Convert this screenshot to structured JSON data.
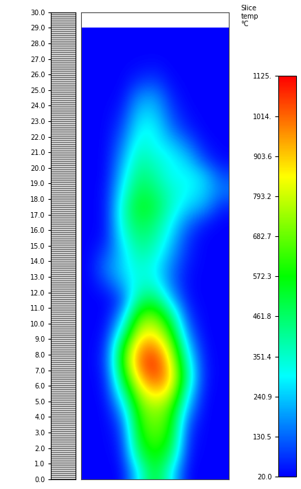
{
  "chart_data": {
    "type": "heatmap",
    "title": "Slice\ntemp\n°C",
    "tick_labels": "y",
    "xlim": [
      -4.5,
      4.5
    ],
    "xticks": [],
    "ylim": [
      0,
      30
    ],
    "yticks": [
      {
        "value": 0,
        "label": "0.0"
      },
      {
        "value": 1,
        "label": "1.0"
      },
      {
        "value": 2,
        "label": "2.0"
      },
      {
        "value": 3,
        "label": "3.0"
      },
      {
        "value": 4,
        "label": "4.0"
      },
      {
        "value": 5,
        "label": "5.0"
      },
      {
        "value": 6,
        "label": "6.0"
      },
      {
        "value": 7,
        "label": "7.0"
      },
      {
        "value": 8,
        "label": "8.0"
      },
      {
        "value": 9,
        "label": "9.0"
      },
      {
        "value": 10,
        "label": "10.0"
      },
      {
        "value": 11,
        "label": "11.0"
      },
      {
        "value": 12,
        "label": "12.0"
      },
      {
        "value": 13,
        "label": "13.0"
      },
      {
        "value": 14,
        "label": "14.0"
      },
      {
        "value": 15,
        "label": "15.0"
      },
      {
        "value": 16,
        "label": "16.0"
      },
      {
        "value": 17,
        "label": "17.0"
      },
      {
        "value": 18,
        "label": "18.0"
      },
      {
        "value": 19,
        "label": "19.0"
      },
      {
        "value": 20,
        "label": "20.0"
      },
      {
        "value": 21,
        "label": "21.0"
      },
      {
        "value": 22,
        "label": "22.0"
      },
      {
        "value": 23,
        "label": "23.0"
      },
      {
        "value": 24,
        "label": "24.0"
      },
      {
        "value": 25,
        "label": "25.0"
      },
      {
        "value": 26,
        "label": "26.0"
      },
      {
        "value": 27,
        "label": "27.0"
      },
      {
        "value": 28,
        "label": "28.0"
      },
      {
        "value": 29,
        "label": "29.0"
      },
      {
        "value": 30,
        "label": "30.0"
      }
    ],
    "x": [
      -4,
      -3,
      -2,
      -1,
      0,
      1,
      2,
      3,
      4
    ],
    "y": [
      0.5,
      1.5,
      2.5,
      3.5,
      4.5,
      5.5,
      6.5,
      7.5,
      8.5,
      9.5,
      10.5,
      11.5,
      12.5,
      13.5,
      14.5,
      15.5,
      16.5,
      17.5,
      18.5,
      19.5,
      20.5,
      21.5,
      22.5,
      23.5,
      24.5,
      25.5,
      26.5,
      27.5,
      28.5
    ],
    "cells": [
      [
        20,
        20,
        20,
        300,
        550,
        300,
        20,
        20,
        20
      ],
      [
        20,
        20,
        40,
        450,
        600,
        450,
        40,
        20,
        20
      ],
      [
        20,
        20,
        60,
        550,
        650,
        550,
        60,
        20,
        20
      ],
      [
        20,
        20,
        100,
        600,
        700,
        600,
        100,
        20,
        20
      ],
      [
        20,
        20,
        200,
        650,
        750,
        650,
        200,
        20,
        20
      ],
      [
        20,
        30,
        350,
        750,
        900,
        800,
        300,
        30,
        20
      ],
      [
        20,
        40,
        500,
        900,
        1050,
        900,
        400,
        40,
        20
      ],
      [
        20,
        60,
        600,
        1000,
        1100,
        850,
        350,
        40,
        20
      ],
      [
        20,
        50,
        550,
        950,
        1000,
        750,
        250,
        30,
        20
      ],
      [
        20,
        30,
        350,
        800,
        850,
        600,
        150,
        20,
        20
      ],
      [
        20,
        20,
        200,
        650,
        700,
        450,
        80,
        20,
        20
      ],
      [
        20,
        20,
        100,
        450,
        500,
        250,
        40,
        20,
        20
      ],
      [
        20,
        80,
        200,
        350,
        350,
        150,
        30,
        20,
        20
      ],
      [
        20,
        150,
        250,
        350,
        300,
        150,
        40,
        20,
        20
      ],
      [
        20,
        100,
        250,
        400,
        350,
        200,
        60,
        20,
        20
      ],
      [
        20,
        40,
        300,
        450,
        400,
        250,
        80,
        20,
        20
      ],
      [
        20,
        30,
        350,
        500,
        450,
        300,
        150,
        60,
        20
      ],
      [
        20,
        30,
        350,
        550,
        500,
        350,
        250,
        200,
        60
      ],
      [
        20,
        30,
        300,
        500,
        450,
        350,
        300,
        250,
        150
      ],
      [
        20,
        20,
        250,
        450,
        400,
        300,
        300,
        250,
        100
      ],
      [
        20,
        20,
        200,
        400,
        350,
        300,
        250,
        100,
        30
      ],
      [
        20,
        20,
        150,
        350,
        300,
        250,
        150,
        40,
        20
      ],
      [
        20,
        20,
        100,
        300,
        300,
        150,
        60,
        20,
        20
      ],
      [
        20,
        20,
        60,
        250,
        250,
        100,
        30,
        20,
        20
      ],
      [
        20,
        20,
        30,
        180,
        200,
        60,
        20,
        20,
        20
      ],
      [
        20,
        20,
        20,
        80,
        100,
        30,
        20,
        20,
        20
      ],
      [
        20,
        20,
        20,
        30,
        40,
        20,
        20,
        20,
        20
      ],
      [
        20,
        20,
        20,
        20,
        20,
        20,
        20,
        20,
        20
      ],
      [
        20,
        20,
        20,
        20,
        20,
        20,
        20,
        20,
        20
      ]
    ],
    "colorbar_range": [
      20.0,
      1125
    ],
    "colorbar_ticks": [
      20.0,
      130.5,
      240.9,
      351.4,
      461.8,
      572.3,
      682.7,
      793.2,
      903.6,
      {
        "value": 1014,
        "label": "1014."
      },
      {
        "value": 1125,
        "label": "1125."
      }
    ]
  }
}
